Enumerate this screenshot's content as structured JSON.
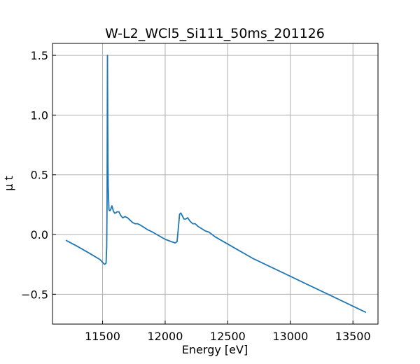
{
  "chart_data": {
    "type": "line",
    "title": "W-L2_WCl5_Si111_50ms_201126",
    "xlabel": "Energy [eV]",
    "ylabel": "μ t",
    "xlim": [
      11100,
      13700
    ],
    "ylim": [
      -0.75,
      1.6
    ],
    "x_ticks": [
      11500,
      12000,
      12500,
      13000,
      13500
    ],
    "y_ticks": [
      -0.5,
      0.0,
      0.5,
      1.0,
      1.5
    ],
    "x_tick_labels": [
      "11500",
      "12000",
      "12500",
      "13000",
      "13500"
    ],
    "y_tick_labels": [
      "−0.5",
      "0.0",
      "0.5",
      "1.0",
      "1.5"
    ],
    "grid": true,
    "line_color": "#1f77b4",
    "series": [
      {
        "x": [
          11210,
          11300,
          11400,
          11480,
          11515,
          11528,
          11533,
          11536,
          11539,
          11541,
          11543,
          11545,
          11548,
          11551,
          11555,
          11560,
          11565,
          11575,
          11585,
          11595,
          11605,
          11615,
          11630,
          11645,
          11660,
          11680,
          11700,
          11720,
          11740,
          11760,
          11780,
          11800,
          11830,
          11860,
          11900,
          11950,
          12000,
          12050,
          12080,
          12095,
          12105,
          12115,
          12125,
          12135,
          12150,
          12165,
          12180,
          12200,
          12220,
          12240,
          12260,
          12290,
          12320,
          12350,
          12400,
          12500,
          12600,
          12700,
          12800,
          12900,
          13000,
          13100,
          13200,
          13300,
          13400,
          13500,
          13600
        ],
        "y": [
          -0.05,
          -0.1,
          -0.16,
          -0.21,
          -0.25,
          -0.24,
          -0.1,
          0.3,
          1.5,
          1.0,
          0.6,
          0.4,
          0.3,
          0.21,
          0.2,
          0.2,
          0.21,
          0.24,
          0.2,
          0.18,
          0.18,
          0.19,
          0.19,
          0.16,
          0.14,
          0.15,
          0.14,
          0.12,
          0.1,
          0.09,
          0.09,
          0.08,
          0.06,
          0.04,
          0.02,
          -0.01,
          -0.04,
          -0.06,
          -0.07,
          -0.06,
          0.05,
          0.17,
          0.18,
          0.16,
          0.13,
          0.13,
          0.14,
          0.11,
          0.09,
          0.09,
          0.07,
          0.05,
          0.03,
          0.02,
          -0.02,
          -0.08,
          -0.14,
          -0.2,
          -0.25,
          -0.3,
          -0.35,
          -0.4,
          -0.45,
          -0.5,
          -0.55,
          -0.6,
          -0.65
        ]
      }
    ]
  }
}
